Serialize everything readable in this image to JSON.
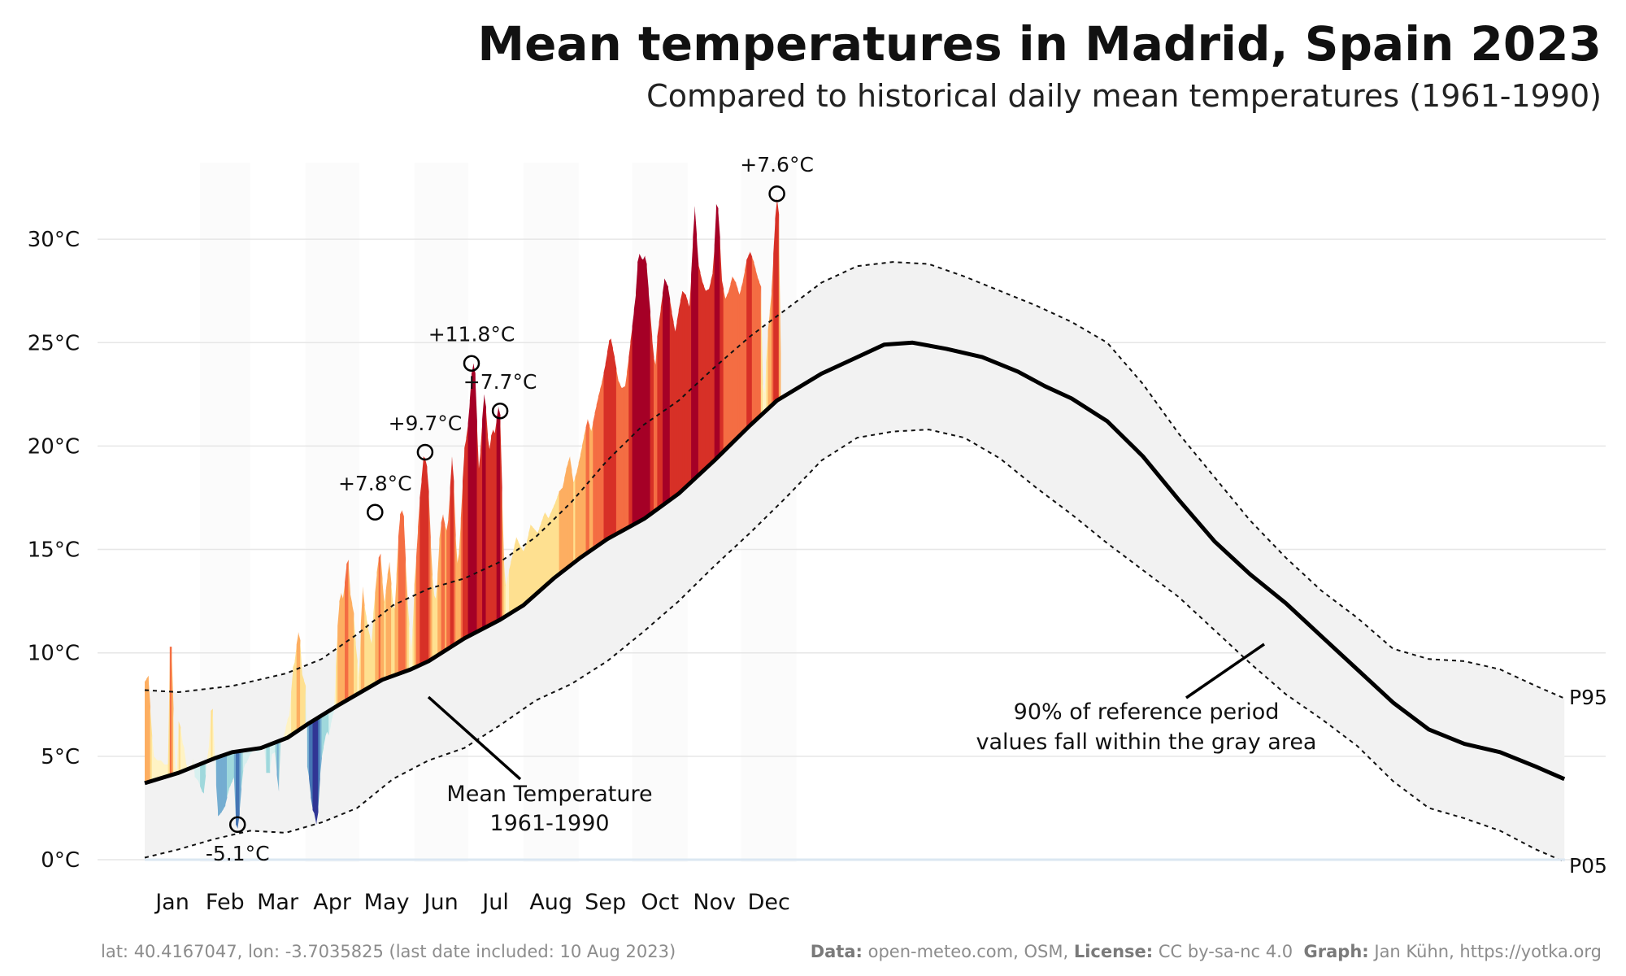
{
  "header": {
    "title": "Mean temperatures in Madrid, Spain 2023",
    "subtitle": "Compared to historical daily mean temperatures (1961-1990)"
  },
  "footer": {
    "location": "lat: 40.4167047, lon: -3.7035825 (last date included: 10 Aug 2023)",
    "data_label": "Data:",
    "data_value": "open-meteo.com, OSM,",
    "license_label": "License:",
    "license_value": "CC by-sa-nc 4.0",
    "graph_label": "Graph:",
    "graph_value": "Jan Kühn, https://yotka.org"
  },
  "annotations": {
    "mean_line_1": "Mean Temperature",
    "mean_line_2": "1961-1990",
    "gray_area_1": "90% of reference period",
    "gray_area_2": "values fall within the gray area",
    "p95": "P95",
    "p05": "P05"
  },
  "colors": {
    "band_fill": "#f2f2f2",
    "mean_line": "#000000",
    "month_shade": "#fbfbfb",
    "grid": "#e6e6e6",
    "warm_scale": [
      "#fff3c4",
      "#fee090",
      "#fdae61",
      "#f46d43",
      "#d73027",
      "#a50026"
    ],
    "cold_scale": [
      "#d7f0ef",
      "#9fd8dc",
      "#74add1",
      "#4575b4",
      "#313695"
    ]
  },
  "chart_data": {
    "type": "area",
    "title": "Mean temperatures in Madrid, Spain 2023",
    "subtitle": "Compared to historical daily mean temperatures (1961-1990)",
    "xlabel": "",
    "ylabel": "",
    "ylim": [
      0,
      33
    ],
    "yticks": [
      0,
      5,
      10,
      15,
      20,
      25,
      30
    ],
    "ytick_labels": [
      "0°C",
      "5°C",
      "10°C",
      "15°C",
      "20°C",
      "25°C",
      "30°C"
    ],
    "months": [
      "Jan",
      "Feb",
      "Mar",
      "Apr",
      "May",
      "Jun",
      "Jul",
      "Aug",
      "Sep",
      "Oct",
      "Nov",
      "Dec"
    ],
    "grid": true,
    "mean": [
      [
        1,
        3.7
      ],
      [
        20,
        4.2
      ],
      [
        40,
        4.9
      ],
      [
        50,
        5.2
      ],
      [
        66,
        5.4
      ],
      [
        81,
        5.9
      ],
      [
        93,
        6.6
      ],
      [
        110,
        7.5
      ],
      [
        120,
        8.0
      ],
      [
        134,
        8.7
      ],
      [
        150,
        9.2
      ],
      [
        160,
        9.6
      ],
      [
        180,
        10.7
      ],
      [
        200,
        11.6
      ],
      [
        213,
        12.3
      ],
      [
        230,
        13.6
      ],
      [
        245,
        14.6
      ],
      [
        260,
        15.5
      ],
      [
        281,
        16.5
      ],
      [
        300,
        17.7
      ],
      [
        320,
        19.3
      ],
      [
        340,
        21.0
      ],
      [
        355,
        22.2
      ],
      [
        380,
        23.5
      ],
      [
        400,
        24.3
      ],
      [
        415,
        24.9
      ],
      [
        431,
        25.0
      ],
      [
        450,
        24.7
      ],
      [
        470,
        24.3
      ],
      [
        490,
        23.6
      ],
      [
        505,
        22.9
      ],
      [
        520,
        22.3
      ],
      [
        540,
        21.2
      ],
      [
        560,
        19.5
      ],
      [
        580,
        17.4
      ],
      [
        600,
        15.4
      ],
      [
        620,
        13.8
      ],
      [
        640,
        12.4
      ],
      [
        660,
        10.8
      ],
      [
        680,
        9.2
      ],
      [
        700,
        7.6
      ],
      [
        720,
        6.3
      ],
      [
        740,
        5.6
      ],
      [
        760,
        5.2
      ],
      [
        780,
        4.5
      ],
      [
        796,
        3.9
      ]
    ],
    "p95": [
      [
        1,
        8.2
      ],
      [
        20,
        8.1
      ],
      [
        50,
        8.4
      ],
      [
        80,
        9.0
      ],
      [
        100,
        9.7
      ],
      [
        120,
        10.9
      ],
      [
        140,
        12.3
      ],
      [
        160,
        13.1
      ],
      [
        180,
        13.6
      ],
      [
        200,
        14.4
      ],
      [
        220,
        15.6
      ],
      [
        240,
        17.3
      ],
      [
        260,
        19.3
      ],
      [
        280,
        21.0
      ],
      [
        300,
        22.2
      ],
      [
        320,
        23.8
      ],
      [
        340,
        25.3
      ],
      [
        360,
        26.6
      ],
      [
        380,
        27.9
      ],
      [
        400,
        28.7
      ],
      [
        420,
        28.9
      ],
      [
        440,
        28.8
      ],
      [
        460,
        28.2
      ],
      [
        480,
        27.5
      ],
      [
        500,
        26.8
      ],
      [
        520,
        26.0
      ],
      [
        540,
        25.0
      ],
      [
        560,
        23.0
      ],
      [
        580,
        20.6
      ],
      [
        600,
        18.5
      ],
      [
        620,
        16.4
      ],
      [
        640,
        14.6
      ],
      [
        660,
        13.0
      ],
      [
        680,
        11.7
      ],
      [
        700,
        10.2
      ],
      [
        720,
        9.7
      ],
      [
        740,
        9.6
      ],
      [
        760,
        9.2
      ],
      [
        780,
        8.4
      ],
      [
        796,
        7.8
      ]
    ],
    "p05": [
      [
        1,
        0.1
      ],
      [
        20,
        0.5
      ],
      [
        40,
        1.0
      ],
      [
        60,
        1.4
      ],
      [
        80,
        1.3
      ],
      [
        100,
        1.8
      ],
      [
        120,
        2.5
      ],
      [
        140,
        3.9
      ],
      [
        160,
        4.8
      ],
      [
        180,
        5.4
      ],
      [
        200,
        6.5
      ],
      [
        220,
        7.7
      ],
      [
        240,
        8.5
      ],
      [
        260,
        9.6
      ],
      [
        280,
        11.0
      ],
      [
        300,
        12.5
      ],
      [
        320,
        14.2
      ],
      [
        340,
        15.8
      ],
      [
        360,
        17.5
      ],
      [
        380,
        19.3
      ],
      [
        400,
        20.4
      ],
      [
        420,
        20.7
      ],
      [
        440,
        20.8
      ],
      [
        460,
        20.4
      ],
      [
        480,
        19.4
      ],
      [
        500,
        18.0
      ],
      [
        520,
        16.7
      ],
      [
        540,
        15.3
      ],
      [
        560,
        14.0
      ],
      [
        580,
        12.7
      ],
      [
        600,
        11.1
      ],
      [
        620,
        9.5
      ],
      [
        640,
        8.0
      ],
      [
        660,
        6.8
      ],
      [
        680,
        5.5
      ],
      [
        700,
        3.8
      ],
      [
        720,
        2.5
      ],
      [
        740,
        2.0
      ],
      [
        760,
        1.4
      ],
      [
        780,
        0.5
      ],
      [
        796,
        -0.1
      ]
    ],
    "daily_2023": [
      [
        1,
        8.6
      ],
      [
        3,
        8.9
      ],
      [
        4,
        7.4
      ],
      [
        5,
        6.0
      ],
      [
        6,
        5.0
      ],
      [
        8,
        4.8
      ],
      [
        10,
        4.8
      ],
      [
        12,
        4.6
      ],
      [
        14,
        4.6
      ],
      [
        15,
        10.3
      ],
      [
        16,
        10.3
      ],
      [
        17,
        7.3
      ],
      [
        18,
        4.5
      ],
      [
        19,
        4.3
      ],
      [
        20,
        6.7
      ],
      [
        21,
        6.4
      ],
      [
        22,
        5.7
      ],
      [
        23,
        5.4
      ],
      [
        24,
        4.7
      ],
      [
        25,
        4.4
      ],
      [
        26,
        4.6
      ],
      [
        27,
        4.3
      ],
      [
        28,
        4.9
      ],
      [
        29,
        4.0
      ],
      [
        31,
        3.8
      ],
      [
        33,
        3.3
      ],
      [
        34,
        3.2
      ],
      [
        36,
        4.9
      ],
      [
        37,
        5.6
      ],
      [
        38,
        7.2
      ],
      [
        39,
        7.3
      ],
      [
        40,
        5.1
      ],
      [
        42,
        2.1
      ],
      [
        44,
        2.3
      ],
      [
        46,
        2.6
      ],
      [
        48,
        3.4
      ],
      [
        51,
        4.0
      ],
      [
        52,
        1.7
      ],
      [
        53,
        1.5
      ],
      [
        54,
        2.2
      ],
      [
        55,
        3.4
      ],
      [
        56,
        4.3
      ],
      [
        57,
        4.6
      ],
      [
        58,
        4.7
      ],
      [
        60,
        5.1
      ],
      [
        62,
        5.3
      ],
      [
        64,
        5.2
      ],
      [
        66,
        5.3
      ],
      [
        68,
        5.4
      ],
      [
        69,
        4.2
      ],
      [
        71,
        4.2
      ],
      [
        72,
        5.1
      ],
      [
        74,
        5.2
      ],
      [
        75,
        4.1
      ],
      [
        76,
        3.3
      ],
      [
        77,
        5.7
      ],
      [
        79,
        6.0
      ],
      [
        81,
        6.8
      ],
      [
        82,
        7.0
      ],
      [
        83,
        8.1
      ],
      [
        84,
        9.3
      ],
      [
        85,
        9.6
      ],
      [
        86,
        10.4
      ],
      [
        87,
        11.0
      ],
      [
        88,
        10.6
      ],
      [
        89,
        9.0
      ],
      [
        91,
        8.4
      ],
      [
        92,
        4.5
      ],
      [
        93,
        3.9
      ],
      [
        94,
        3.0
      ],
      [
        95,
        2.4
      ],
      [
        96,
        2.2
      ],
      [
        97,
        1.7
      ],
      [
        98,
        2.3
      ],
      [
        99,
        3.9
      ],
      [
        100,
        4.9
      ],
      [
        101,
        5.4
      ],
      [
        102,
        5.9
      ],
      [
        103,
        6.2
      ],
      [
        104,
        6.0
      ],
      [
        106,
        6.9
      ],
      [
        107,
        7.2
      ],
      [
        108,
        9.3
      ],
      [
        109,
        11.3
      ],
      [
        110,
        12.5
      ],
      [
        111,
        12.9
      ],
      [
        112,
        12.6
      ],
      [
        113,
        13.4
      ],
      [
        114,
        14.3
      ],
      [
        115,
        14.5
      ],
      [
        116,
        12.9
      ],
      [
        117,
        12.4
      ],
      [
        118,
        11.9
      ],
      [
        119,
        10.5
      ],
      [
        120,
        9.6
      ],
      [
        121,
        8.8
      ],
      [
        122,
        11.4
      ],
      [
        123,
        13.2
      ],
      [
        124,
        12.3
      ],
      [
        126,
        11.2
      ],
      [
        128,
        10.4
      ],
      [
        129,
        11.9
      ],
      [
        131,
        13.9
      ],
      [
        132,
        14.6
      ],
      [
        133,
        14.8
      ],
      [
        134,
        13.6
      ],
      [
        135,
        12.4
      ],
      [
        136,
        13.0
      ],
      [
        137,
        13.8
      ],
      [
        138,
        14.4
      ],
      [
        140,
        12.3
      ],
      [
        141,
        12.1
      ],
      [
        142,
        13.8
      ],
      [
        143,
        15.6
      ],
      [
        144,
        16.7
      ],
      [
        145,
        16.9
      ],
      [
        146,
        16.6
      ],
      [
        147,
        14.5
      ],
      [
        148,
        12.7
      ],
      [
        149,
        11.4
      ],
      [
        150,
        10.1
      ],
      [
        151,
        11.1
      ],
      [
        152,
        13.3
      ],
      [
        153,
        14.6
      ],
      [
        154,
        16.1
      ],
      [
        155,
        17.5
      ],
      [
        156,
        18.4
      ],
      [
        157,
        19.5
      ],
      [
        158,
        19.4
      ],
      [
        159,
        19.0
      ],
      [
        160,
        17.8
      ],
      [
        161,
        15.6
      ],
      [
        162,
        13.8
      ],
      [
        163,
        12.8
      ],
      [
        164,
        12.6
      ],
      [
        165,
        13.8
      ],
      [
        166,
        15.5
      ],
      [
        167,
        16.3
      ],
      [
        168,
        16.7
      ],
      [
        169,
        16.2
      ],
      [
        170,
        15.9
      ],
      [
        171,
        16.5
      ],
      [
        172,
        18.0
      ],
      [
        173,
        19.5
      ],
      [
        174,
        18.3
      ],
      [
        175,
        15.7
      ],
      [
        176,
        14.3
      ],
      [
        177,
        14.9
      ],
      [
        178,
        16.5
      ],
      [
        179,
        18.3
      ],
      [
        180,
        19.9
      ],
      [
        181,
        20.4
      ],
      [
        182,
        21.1
      ],
      [
        183,
        22.2
      ],
      [
        184,
        23.5
      ],
      [
        185,
        24.0
      ],
      [
        186,
        23.5
      ],
      [
        187,
        21.2
      ],
      [
        188,
        18.8
      ],
      [
        189,
        19.8
      ],
      [
        190,
        21.3
      ],
      [
        191,
        22.5
      ],
      [
        192,
        21.9
      ],
      [
        193,
        20.5
      ],
      [
        194,
        19.8
      ],
      [
        195,
        20.5
      ],
      [
        196,
        20.8
      ],
      [
        197,
        20.6
      ],
      [
        198,
        21.3
      ],
      [
        199,
        21.9
      ],
      [
        200,
        21.5
      ],
      [
        201,
        18.0
      ],
      [
        202,
        14.6
      ],
      [
        203,
        13.2
      ],
      [
        205,
        14.0
      ],
      [
        207,
        14.8
      ],
      [
        209,
        15.6
      ],
      [
        211,
        15.2
      ],
      [
        213,
        14.9
      ],
      [
        215,
        15.4
      ],
      [
        217,
        16.2
      ],
      [
        219,
        16.0
      ],
      [
        221,
        15.8
      ],
      [
        223,
        16.3
      ],
      [
        225,
        16.8
      ],
      [
        227,
        16.5
      ],
      [
        229,
        16.9
      ],
      [
        231,
        17.3
      ],
      [
        233,
        17.8
      ],
      [
        235,
        18.0
      ],
      [
        237,
        18.9
      ],
      [
        239,
        19.5
      ],
      [
        241,
        18.2
      ],
      [
        243,
        18.8
      ],
      [
        245,
        19.6
      ],
      [
        247,
        20.5
      ],
      [
        249,
        21.3
      ],
      [
        251,
        20.7
      ],
      [
        253,
        21.6
      ],
      [
        255,
        22.4
      ],
      [
        257,
        23.1
      ],
      [
        259,
        24.0
      ],
      [
        261,
        25.1
      ],
      [
        262,
        25.2
      ],
      [
        264,
        24.3
      ],
      [
        266,
        23.2
      ],
      [
        268,
        22.8
      ],
      [
        270,
        22.9
      ],
      [
        272,
        24.3
      ],
      [
        274,
        25.8
      ],
      [
        276,
        27.4
      ],
      [
        277,
        28.9
      ],
      [
        278,
        29.3
      ],
      [
        279,
        29.1
      ],
      [
        280,
        29.0
      ],
      [
        281,
        29.2
      ],
      [
        282,
        28.8
      ],
      [
        283,
        27.6
      ],
      [
        284,
        26.5
      ],
      [
        285,
        25.3
      ],
      [
        286,
        24.3
      ],
      [
        287,
        23.9
      ],
      [
        288,
        25.3
      ],
      [
        290,
        26.7
      ],
      [
        292,
        28.1
      ],
      [
        294,
        27.7
      ],
      [
        296,
        26.5
      ],
      [
        298,
        25.5
      ],
      [
        300,
        26.6
      ],
      [
        302,
        27.5
      ],
      [
        304,
        27.3
      ],
      [
        306,
        26.7
      ],
      [
        307,
        28.3
      ],
      [
        308,
        30.1
      ],
      [
        309,
        31.6
      ],
      [
        310,
        30.2
      ],
      [
        311,
        28.8
      ],
      [
        313,
        28.0
      ],
      [
        315,
        27.5
      ],
      [
        317,
        27.6
      ],
      [
        319,
        28.4
      ],
      [
        320,
        29.7
      ],
      [
        321,
        31.7
      ],
      [
        322,
        31.5
      ],
      [
        323,
        30.1
      ],
      [
        324,
        28.1
      ],
      [
        326,
        27.1
      ],
      [
        328,
        27.5
      ],
      [
        330,
        28.2
      ],
      [
        332,
        27.9
      ],
      [
        334,
        27.3
      ],
      [
        336,
        28.0
      ],
      [
        338,
        29.0
      ],
      [
        340,
        29.4
      ],
      [
        342,
        28.9
      ],
      [
        344,
        28.2
      ],
      [
        346,
        27.7
      ],
      [
        347,
        23.0
      ],
      [
        348,
        22.5
      ],
      [
        350,
        25.6
      ],
      [
        352,
        27.5
      ],
      [
        353,
        29.3
      ],
      [
        354,
        31.0
      ],
      [
        355,
        32.0
      ],
      [
        356,
        31.2
      ],
      [
        357,
        24.5
      ]
    ],
    "highlights": [
      {
        "x": 130,
        "y": 16.8,
        "label": "+7.8°C"
      },
      {
        "x": 158,
        "y": 19.7,
        "label": "+9.7°C"
      },
      {
        "x": 184,
        "y": 24.0,
        "label": "+11.8°C"
      },
      {
        "x": 200,
        "y": 21.7,
        "label": "+7.7°C"
      },
      {
        "x": 355,
        "y": 32.2,
        "label": "+7.6°C"
      },
      {
        "x": 53,
        "y": 1.7,
        "label": "-5.1°C"
      }
    ]
  }
}
